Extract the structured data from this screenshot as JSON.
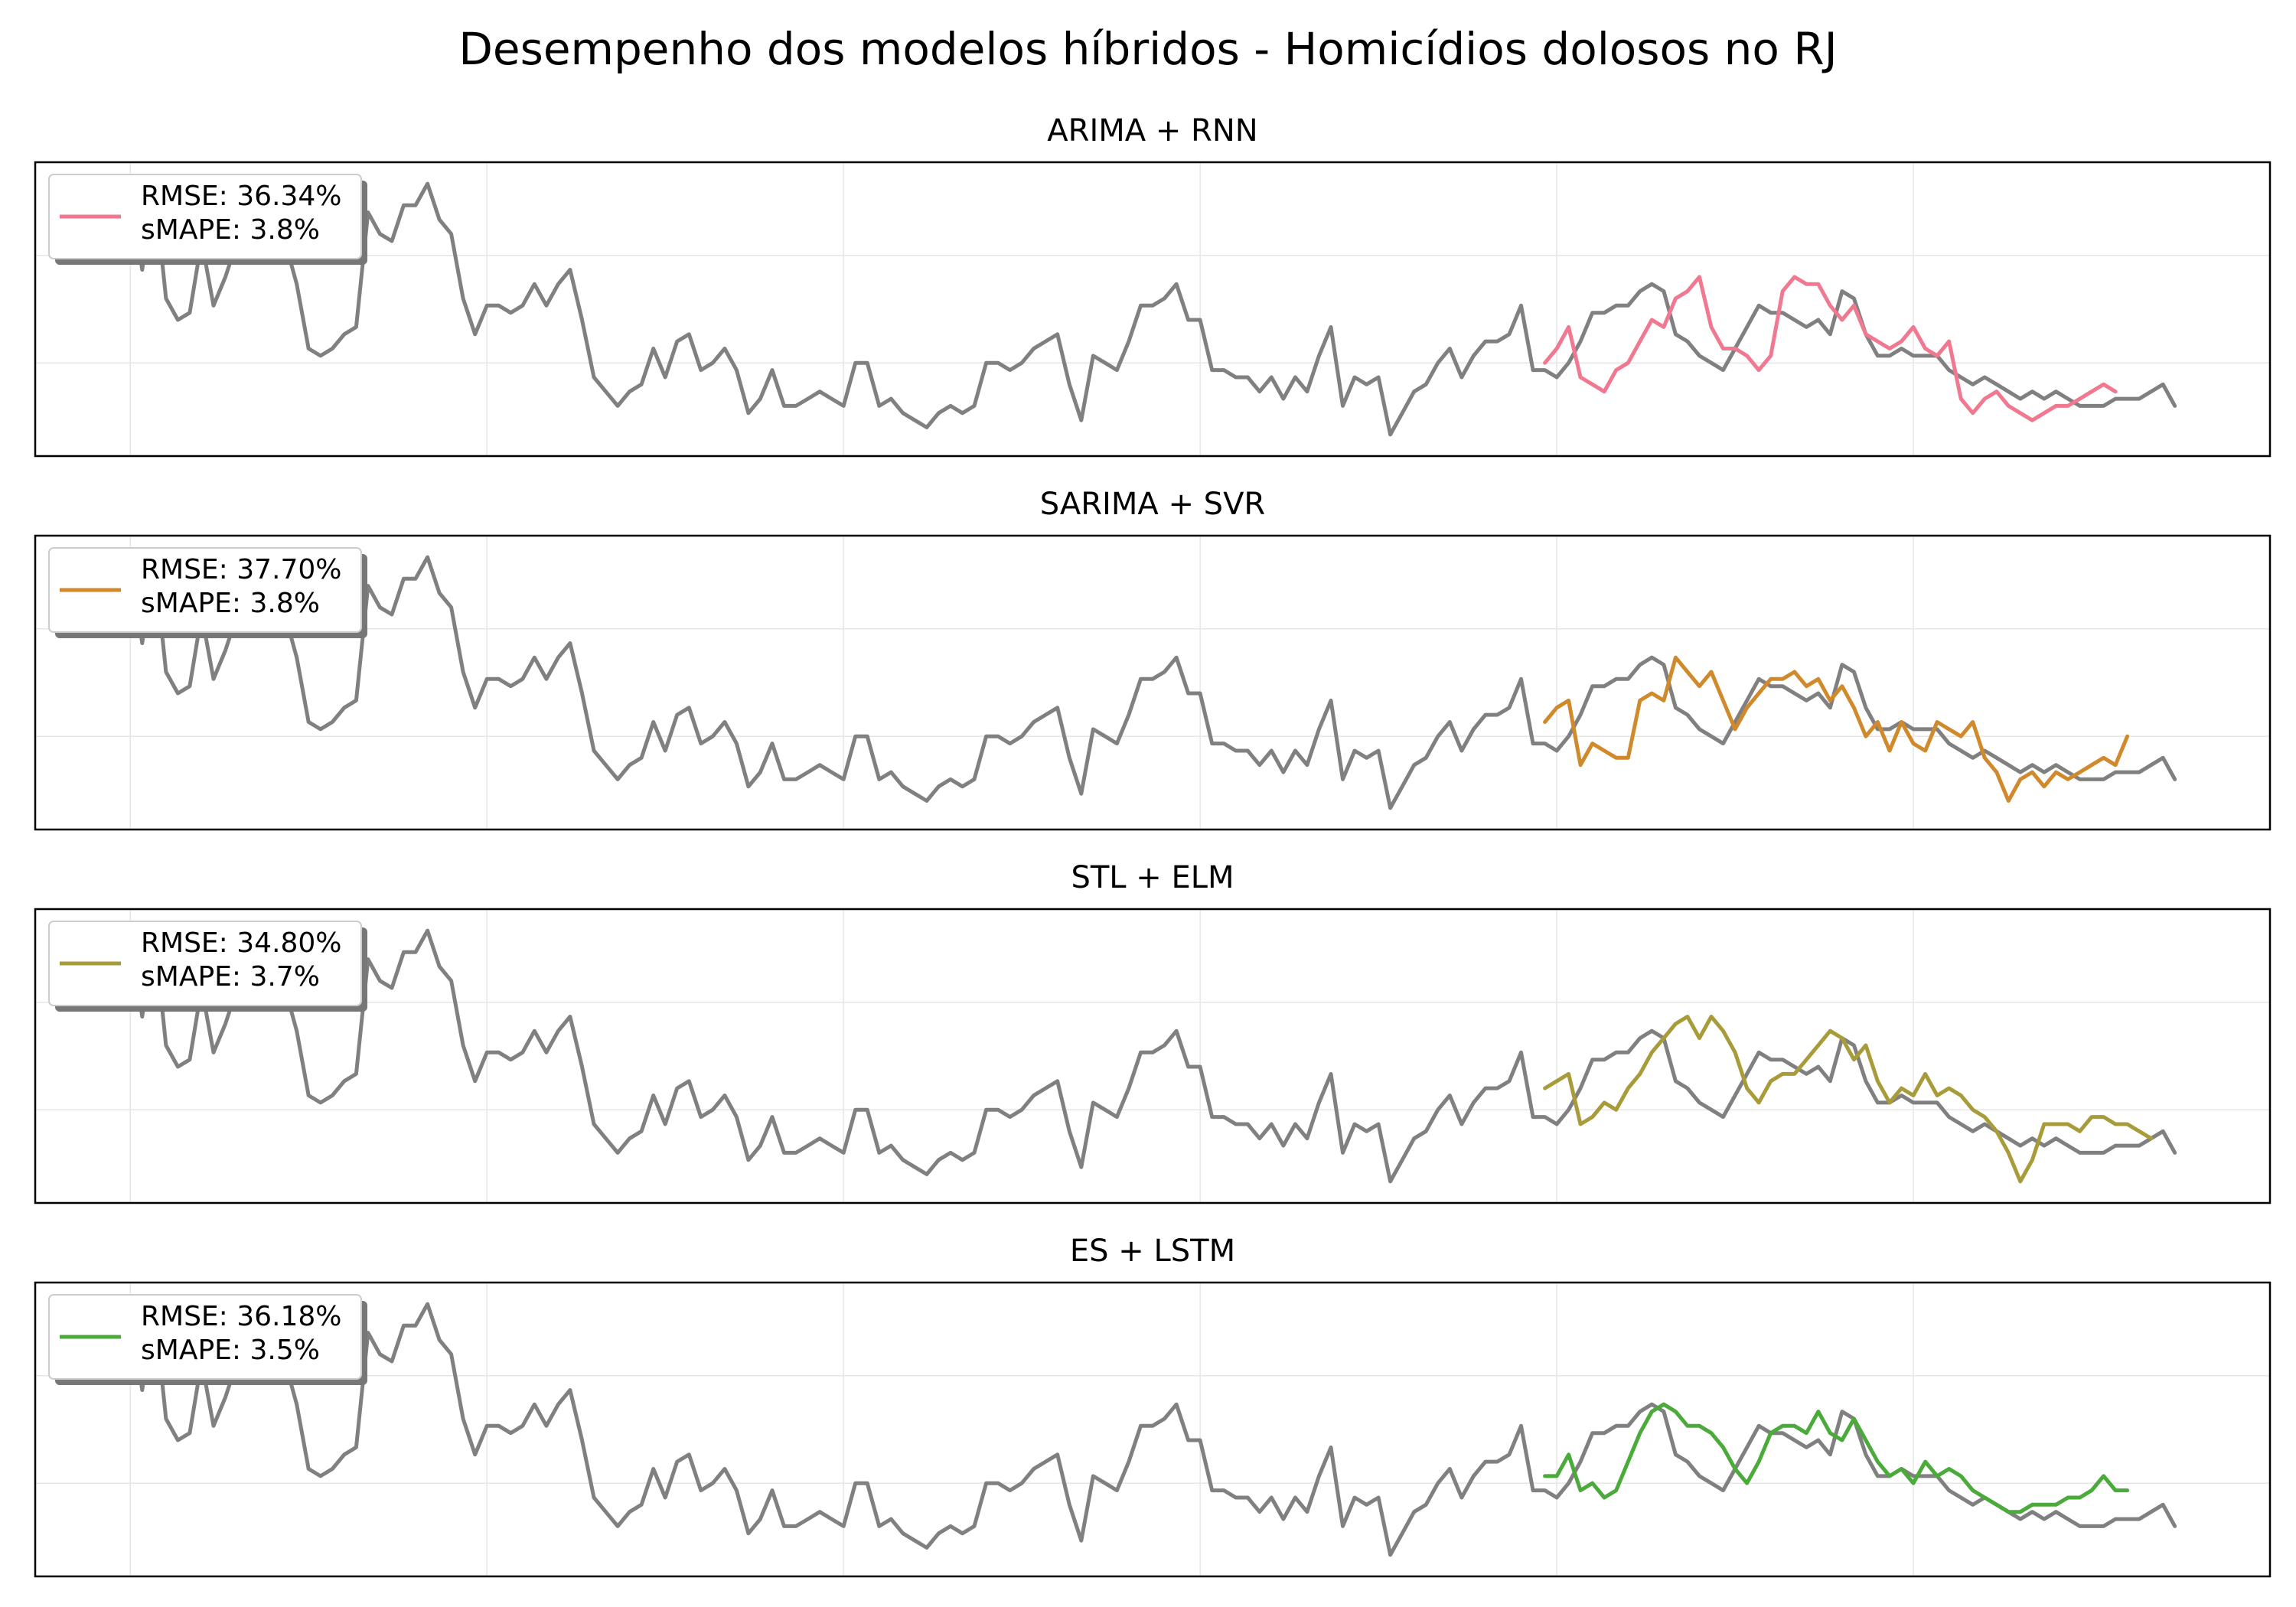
{
  "figure": {
    "title": "Desempenho dos modelos híbridos - Homicídios dolosos no RJ"
  },
  "colors": {
    "actual": "#808080",
    "grid": "#e6e6e6",
    "frame": "#000000"
  },
  "chart_data": [
    {
      "type": "line",
      "title": "ARIMA + RNN",
      "xlabel": "",
      "ylabel": "",
      "grid": true,
      "legend_placement": "upper-left",
      "legend": {
        "rmse": "RMSE: 36.34%",
        "smape": "sMAPE: 3.8%"
      },
      "series": [
        {
          "role": "actual",
          "color": "#808080",
          "x_start": 0,
          "values": [
            74,
            63,
            75,
            59,
            56,
            57,
            67,
            58,
            62,
            67,
            74,
            70,
            65,
            67,
            61,
            52,
            51,
            52,
            54,
            55,
            71,
            68,
            67,
            72,
            72,
            75,
            70,
            68,
            59,
            54,
            58,
            58,
            57,
            58,
            61,
            58,
            61,
            63,
            56,
            48,
            46,
            44,
            46,
            47,
            52,
            48,
            53,
            54,
            49,
            50,
            52,
            49,
            43,
            45,
            49,
            44,
            44,
            45,
            46,
            45,
            44,
            50,
            50,
            44,
            45,
            43,
            42,
            41,
            43,
            44,
            43,
            44,
            50,
            50,
            49,
            50,
            52,
            53,
            54,
            47,
            42,
            51,
            50,
            49,
            53,
            58,
            58,
            59,
            61,
            56,
            56,
            49,
            49,
            48,
            48,
            46,
            48,
            45,
            48,
            46,
            51,
            55,
            44,
            48,
            47,
            48,
            40,
            43,
            46,
            47,
            50,
            52,
            48,
            51,
            53,
            53,
            54,
            58,
            49,
            49,
            48,
            50,
            53,
            57,
            57,
            58,
            58,
            60,
            61,
            60,
            54,
            53,
            51,
            50,
            49,
            52,
            55,
            58,
            57,
            57,
            56,
            55,
            56,
            54,
            60,
            59,
            54,
            51,
            51,
            52,
            51,
            51,
            51,
            49,
            48,
            47,
            48,
            47,
            46,
            45,
            46,
            45,
            46,
            45,
            44,
            44,
            44,
            45,
            45,
            45,
            46,
            47,
            44
          ]
        },
        {
          "role": "forecast",
          "color": "#f07890",
          "x_start": 119,
          "values": [
            50,
            52,
            55,
            48,
            47,
            46,
            49,
            50,
            53,
            56,
            55,
            59,
            60,
            62,
            55,
            52,
            52,
            51,
            49,
            51,
            60,
            62,
            61,
            61,
            58,
            56,
            58,
            54,
            53,
            52,
            53,
            55,
            52,
            51,
            53,
            45,
            43,
            45,
            46,
            44,
            43,
            42,
            43,
            44,
            44,
            45,
            46,
            47,
            46
          ]
        }
      ]
    },
    {
      "type": "line",
      "title": "SARIMA + SVR",
      "xlabel": "",
      "ylabel": "",
      "grid": true,
      "legend_placement": "upper-left",
      "legend": {
        "rmse": "RMSE: 37.70%",
        "smape": "sMAPE: 3.8%"
      },
      "series": [
        {
          "role": "actual",
          "color": "#808080",
          "x_start": 0,
          "values": [
            74,
            63,
            75,
            59,
            56,
            57,
            67,
            58,
            62,
            67,
            74,
            70,
            65,
            67,
            61,
            52,
            51,
            52,
            54,
            55,
            71,
            68,
            67,
            72,
            72,
            75,
            70,
            68,
            59,
            54,
            58,
            58,
            57,
            58,
            61,
            58,
            61,
            63,
            56,
            48,
            46,
            44,
            46,
            47,
            52,
            48,
            53,
            54,
            49,
            50,
            52,
            49,
            43,
            45,
            49,
            44,
            44,
            45,
            46,
            45,
            44,
            50,
            50,
            44,
            45,
            43,
            42,
            41,
            43,
            44,
            43,
            44,
            50,
            50,
            49,
            50,
            52,
            53,
            54,
            47,
            42,
            51,
            50,
            49,
            53,
            58,
            58,
            59,
            61,
            56,
            56,
            49,
            49,
            48,
            48,
            46,
            48,
            45,
            48,
            46,
            51,
            55,
            44,
            48,
            47,
            48,
            40,
            43,
            46,
            47,
            50,
            52,
            48,
            51,
            53,
            53,
            54,
            58,
            49,
            49,
            48,
            50,
            53,
            57,
            57,
            58,
            58,
            60,
            61,
            60,
            54,
            53,
            51,
            50,
            49,
            52,
            55,
            58,
            57,
            57,
            56,
            55,
            56,
            54,
            60,
            59,
            54,
            51,
            51,
            52,
            51,
            51,
            51,
            49,
            48,
            47,
            48,
            47,
            46,
            45,
            46,
            45,
            46,
            45,
            44,
            44,
            44,
            45,
            45,
            45,
            46,
            47,
            44
          ]
        },
        {
          "role": "forecast",
          "color": "#d08a2c",
          "x_start": 119,
          "values": [
            52,
            54,
            55,
            46,
            49,
            48,
            47,
            47,
            55,
            56,
            55,
            61,
            59,
            57,
            59,
            55,
            51,
            54,
            56,
            58,
            58,
            59,
            57,
            58,
            55,
            57,
            54,
            50,
            52,
            48,
            52,
            49,
            48,
            52,
            51,
            50,
            52,
            47,
            45,
            41,
            44,
            45,
            43,
            45,
            44,
            45,
            46,
            47,
            46,
            50
          ]
        }
      ]
    },
    {
      "type": "line",
      "title": "STL + ELM",
      "xlabel": "",
      "ylabel": "",
      "grid": true,
      "legend_placement": "upper-left",
      "legend": {
        "rmse": "RMSE: 34.80%",
        "smape": "sMAPE: 3.7%"
      },
      "series": [
        {
          "role": "actual",
          "color": "#808080",
          "x_start": 0,
          "values": [
            74,
            63,
            75,
            59,
            56,
            57,
            67,
            58,
            62,
            67,
            74,
            70,
            65,
            67,
            61,
            52,
            51,
            52,
            54,
            55,
            71,
            68,
            67,
            72,
            72,
            75,
            70,
            68,
            59,
            54,
            58,
            58,
            57,
            58,
            61,
            58,
            61,
            63,
            56,
            48,
            46,
            44,
            46,
            47,
            52,
            48,
            53,
            54,
            49,
            50,
            52,
            49,
            43,
            45,
            49,
            44,
            44,
            45,
            46,
            45,
            44,
            50,
            50,
            44,
            45,
            43,
            42,
            41,
            43,
            44,
            43,
            44,
            50,
            50,
            49,
            50,
            52,
            53,
            54,
            47,
            42,
            51,
            50,
            49,
            53,
            58,
            58,
            59,
            61,
            56,
            56,
            49,
            49,
            48,
            48,
            46,
            48,
            45,
            48,
            46,
            51,
            55,
            44,
            48,
            47,
            48,
            40,
            43,
            46,
            47,
            50,
            52,
            48,
            51,
            53,
            53,
            54,
            58,
            49,
            49,
            48,
            50,
            53,
            57,
            57,
            58,
            58,
            60,
            61,
            60,
            54,
            53,
            51,
            50,
            49,
            52,
            55,
            58,
            57,
            57,
            56,
            55,
            56,
            54,
            60,
            59,
            54,
            51,
            51,
            52,
            51,
            51,
            51,
            49,
            48,
            47,
            48,
            47,
            46,
            45,
            46,
            45,
            46,
            45,
            44,
            44,
            44,
            45,
            45,
            45,
            46,
            47,
            44
          ]
        },
        {
          "role": "forecast",
          "color": "#a89c3a",
          "x_start": 119,
          "values": [
            53,
            54,
            55,
            48,
            49,
            51,
            50,
            53,
            55,
            58,
            60,
            62,
            63,
            60,
            63,
            61,
            58,
            53,
            51,
            54,
            55,
            55,
            57,
            59,
            61,
            60,
            57,
            59,
            54,
            51,
            53,
            52,
            55,
            52,
            53,
            52,
            50,
            49,
            47,
            44,
            40,
            43,
            48,
            48,
            48,
            47,
            49,
            49,
            48,
            48,
            47,
            46
          ]
        }
      ]
    },
    {
      "type": "line",
      "title": "ES + LSTM",
      "xlabel": "",
      "ylabel": "",
      "grid": true,
      "legend_placement": "upper-left",
      "legend": {
        "rmse": "RMSE: 36.18%",
        "smape": "sMAPE: 3.5%"
      },
      "series": [
        {
          "role": "actual",
          "color": "#808080",
          "x_start": 0,
          "values": [
            74,
            63,
            75,
            59,
            56,
            57,
            67,
            58,
            62,
            67,
            74,
            70,
            65,
            67,
            61,
            52,
            51,
            52,
            54,
            55,
            71,
            68,
            67,
            72,
            72,
            75,
            70,
            68,
            59,
            54,
            58,
            58,
            57,
            58,
            61,
            58,
            61,
            63,
            56,
            48,
            46,
            44,
            46,
            47,
            52,
            48,
            53,
            54,
            49,
            50,
            52,
            49,
            43,
            45,
            49,
            44,
            44,
            45,
            46,
            45,
            44,
            50,
            50,
            44,
            45,
            43,
            42,
            41,
            43,
            44,
            43,
            44,
            50,
            50,
            49,
            50,
            52,
            53,
            54,
            47,
            42,
            51,
            50,
            49,
            53,
            58,
            58,
            59,
            61,
            56,
            56,
            49,
            49,
            48,
            48,
            46,
            48,
            45,
            48,
            46,
            51,
            55,
            44,
            48,
            47,
            48,
            40,
            43,
            46,
            47,
            50,
            52,
            48,
            51,
            53,
            53,
            54,
            58,
            49,
            49,
            48,
            50,
            53,
            57,
            57,
            58,
            58,
            60,
            61,
            60,
            54,
            53,
            51,
            50,
            49,
            52,
            55,
            58,
            57,
            57,
            56,
            55,
            56,
            54,
            60,
            59,
            54,
            51,
            51,
            52,
            51,
            51,
            51,
            49,
            48,
            47,
            48,
            47,
            46,
            45,
            46,
            45,
            46,
            45,
            44,
            44,
            44,
            45,
            45,
            45,
            46,
            47,
            44
          ]
        },
        {
          "role": "forecast",
          "color": "#4aaa3a",
          "x_start": 119,
          "values": [
            51,
            51,
            54,
            49,
            50,
            48,
            49,
            53,
            57,
            60,
            61,
            60,
            58,
            58,
            57,
            55,
            52,
            50,
            53,
            57,
            58,
            58,
            57,
            60,
            57,
            56,
            59,
            56,
            53,
            51,
            52,
            50,
            53,
            51,
            52,
            51,
            49,
            48,
            47,
            46,
            46,
            47,
            47,
            47,
            48,
            48,
            49,
            51,
            49,
            49
          ]
        }
      ]
    }
  ]
}
